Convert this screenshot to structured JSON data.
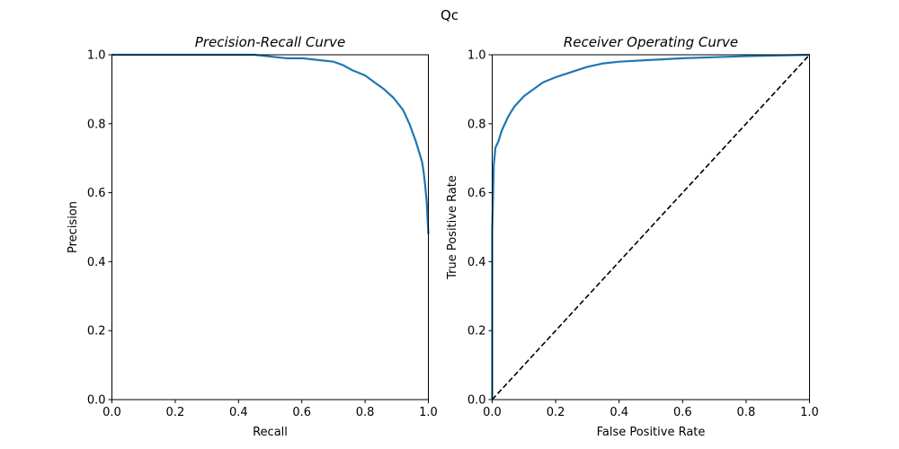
{
  "figure": {
    "suptitle": "Qc"
  },
  "chart_data": [
    {
      "type": "line",
      "title": "Precision-Recall Curve",
      "xlabel": "Recall",
      "ylabel": "Precision",
      "xlim": [
        0.0,
        1.0
      ],
      "ylim": [
        0.0,
        1.0
      ],
      "xticks": [
        "0.0",
        "0.2",
        "0.4",
        "0.6",
        "0.8",
        "1.0"
      ],
      "yticks": [
        "0.0",
        "0.2",
        "0.4",
        "0.6",
        "0.8",
        "1.0"
      ],
      "grid": false,
      "series": [
        {
          "color": "#1f77b4",
          "x": [
            0.0,
            0.1,
            0.2,
            0.3,
            0.4,
            0.45,
            0.5,
            0.55,
            0.6,
            0.65,
            0.7,
            0.73,
            0.76,
            0.8,
            0.83,
            0.86,
            0.89,
            0.92,
            0.94,
            0.96,
            0.97,
            0.98,
            0.985,
            0.99,
            0.995,
            1.0
          ],
          "y": [
            1.0,
            1.0,
            1.0,
            1.0,
            1.0,
            1.0,
            0.995,
            0.99,
            0.99,
            0.985,
            0.98,
            0.97,
            0.955,
            0.94,
            0.92,
            0.9,
            0.875,
            0.84,
            0.8,
            0.75,
            0.72,
            0.69,
            0.66,
            0.62,
            0.57,
            0.48
          ]
        }
      ]
    },
    {
      "type": "line",
      "title": "Receiver Operating Curve",
      "xlabel": "False Positive Rate",
      "ylabel": "True Positive Rate",
      "xlim": [
        0.0,
        1.0
      ],
      "ylim": [
        0.0,
        1.0
      ],
      "xticks": [
        "0.0",
        "0.2",
        "0.4",
        "0.6",
        "0.8",
        "1.0"
      ],
      "yticks": [
        "0.0",
        "0.2",
        "0.4",
        "0.6",
        "0.8",
        "1.0"
      ],
      "grid": false,
      "series": [
        {
          "color": "#1f77b4",
          "x": [
            0.0,
            0.0,
            0.003,
            0.005,
            0.01,
            0.02,
            0.03,
            0.05,
            0.07,
            0.1,
            0.13,
            0.16,
            0.2,
            0.25,
            0.3,
            0.35,
            0.4,
            0.5,
            0.6,
            0.7,
            0.8,
            0.9,
            1.0
          ],
          "y": [
            0.0,
            0.49,
            0.6,
            0.68,
            0.73,
            0.75,
            0.78,
            0.82,
            0.85,
            0.88,
            0.9,
            0.92,
            0.935,
            0.95,
            0.965,
            0.975,
            0.98,
            0.985,
            0.99,
            0.993,
            0.996,
            0.998,
            1.0
          ]
        },
        {
          "color": "#000000",
          "style": "dashed",
          "x": [
            0.0,
            1.0
          ],
          "y": [
            0.0,
            1.0
          ]
        }
      ]
    }
  ]
}
